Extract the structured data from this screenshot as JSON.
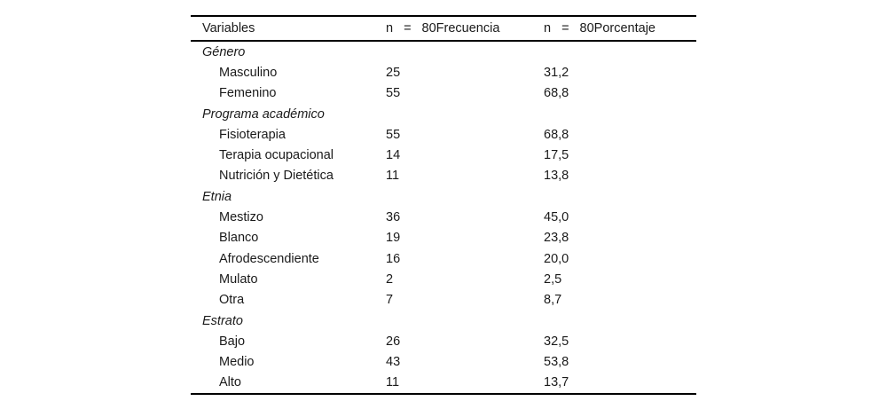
{
  "table": {
    "header": {
      "variables": "Variables",
      "frequency": {
        "n": "n",
        "eq": "=",
        "label": "80Frecuencia"
      },
      "percentage": {
        "n": "n",
        "eq": "=",
        "label": "80Porcentaje"
      }
    },
    "sections": [
      {
        "title": "Género",
        "rows": [
          {
            "label": "Masculino",
            "frequency": "25",
            "percentage": "31,2"
          },
          {
            "label": "Femenino",
            "frequency": "55",
            "percentage": "68,8"
          }
        ]
      },
      {
        "title": "Programa académico",
        "rows": [
          {
            "label": "Fisioterapia",
            "frequency": "55",
            "percentage": "68,8"
          },
          {
            "label": "Terapia ocupacional",
            "frequency": "14",
            "percentage": "17,5"
          },
          {
            "label": "Nutrición y Dietética",
            "frequency": "11",
            "percentage": "13,8"
          }
        ]
      },
      {
        "title": "Etnia",
        "rows": [
          {
            "label": "Mestizo",
            "frequency": "36",
            "percentage": "45,0"
          },
          {
            "label": "Blanco",
            "frequency": "19",
            "percentage": "23,8"
          },
          {
            "label": "Afrodescendiente",
            "frequency": "16",
            "percentage": "20,0"
          },
          {
            "label": "Mulato",
            "frequency": "2",
            "percentage": "2,5"
          },
          {
            "label": "Otra",
            "frequency": "7",
            "percentage": "8,7"
          }
        ]
      },
      {
        "title": "Estrato",
        "rows": [
          {
            "label": "Bajo",
            "frequency": "26",
            "percentage": "32,5"
          },
          {
            "label": "Medio",
            "frequency": "43",
            "percentage": "53,8"
          },
          {
            "label": "Alto",
            "frequency": "11",
            "percentage": "13,7"
          }
        ]
      }
    ],
    "colors": {
      "text": "#1a1a1a",
      "rule": "#000000",
      "background": "#ffffff"
    }
  }
}
